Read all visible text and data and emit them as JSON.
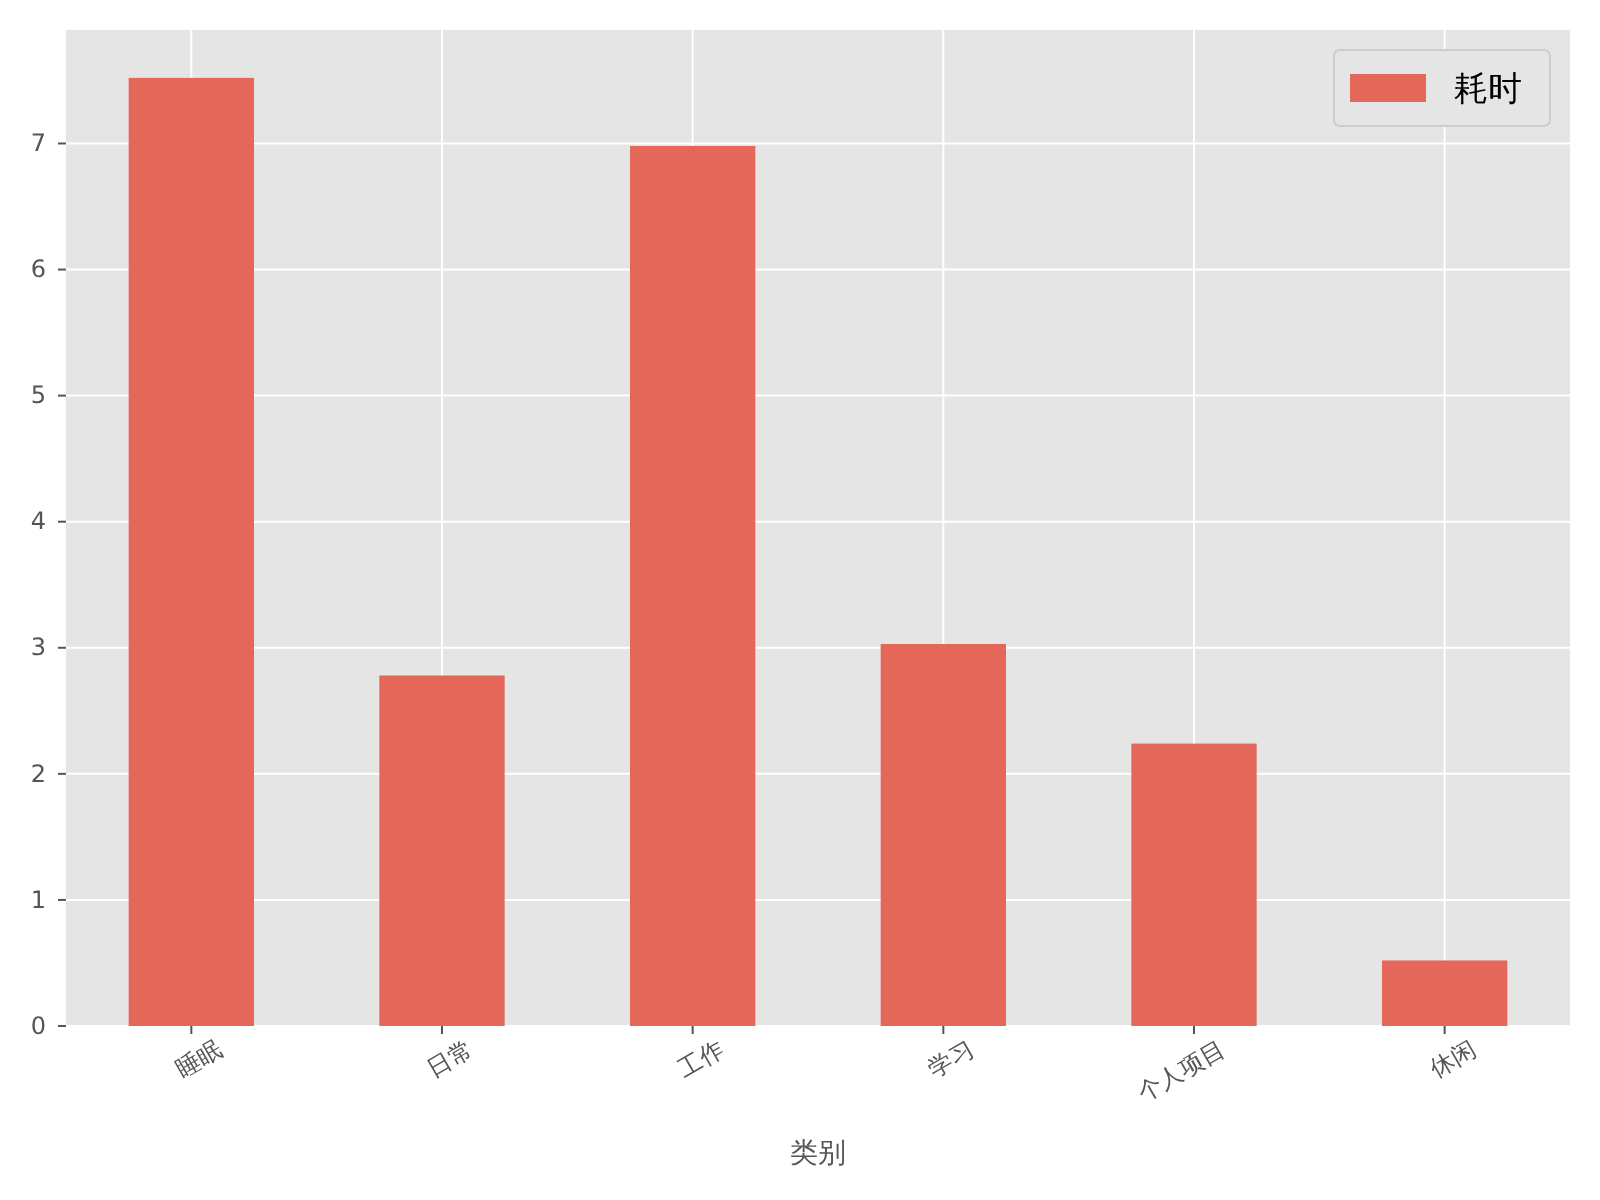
{
  "chart_data": {
    "type": "bar",
    "xlabel": "类别",
    "categories": [
      "睡眠",
      "日常",
      "工作",
      "学习",
      "个人项目",
      "休闲"
    ],
    "series": [
      {
        "name": "耗时",
        "color": "#e3685a",
        "values": [
          7.52,
          2.78,
          6.98,
          3.03,
          2.24,
          0.52
        ]
      }
    ],
    "ylim": [
      0,
      7.9
    ],
    "yticks": [
      0,
      1,
      2,
      3,
      4,
      5,
      6,
      7
    ],
    "grid": true,
    "legend": "top right"
  }
}
